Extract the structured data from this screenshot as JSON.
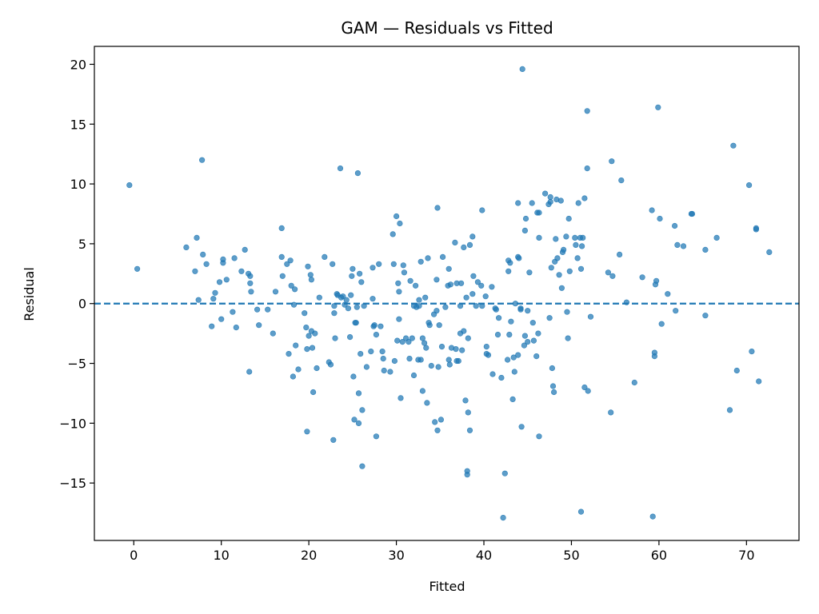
{
  "chart_data": {
    "type": "scatter",
    "title": "GAM — Residuals vs Fitted",
    "xlabel": "Fitted",
    "ylabel": "Residual",
    "xlim": [
      -4.5,
      76
    ],
    "ylim": [
      -19.8,
      21.5
    ],
    "xticks": [
      0,
      10,
      20,
      30,
      40,
      50,
      60,
      70
    ],
    "yticks": [
      -15,
      -10,
      -5,
      0,
      5,
      10,
      15,
      20
    ],
    "xtick_labels": [
      "0",
      "10",
      "20",
      "30",
      "40",
      "50",
      "60",
      "70"
    ],
    "ytick_labels": [
      "−15",
      "−10",
      "−5",
      "0",
      "5",
      "10",
      "15",
      "20"
    ],
    "grid": false,
    "reference_line": {
      "y": 0,
      "style": "dashed"
    },
    "colors": {
      "points": "#1f77b4",
      "reference_line": "#1f77b4"
    },
    "points": [
      [
        -0.5,
        9.9
      ],
      [
        0.4,
        2.9
      ],
      [
        6,
        4.7
      ],
      [
        7,
        2.7
      ],
      [
        7.2,
        5.5
      ],
      [
        7.4,
        0.3
      ],
      [
        7.8,
        12
      ],
      [
        7.9,
        4.1
      ],
      [
        8.3,
        3.3
      ],
      [
        8.9,
        -1.9
      ],
      [
        9.1,
        0.4
      ],
      [
        9.3,
        0.9
      ],
      [
        9.8,
        1.8
      ],
      [
        10,
        -1.3
      ],
      [
        10.2,
        3.7
      ],
      [
        10.2,
        3.4
      ],
      [
        10.6,
        2
      ],
      [
        11.3,
        -0.7
      ],
      [
        11.5,
        3.8
      ],
      [
        11.7,
        -2
      ],
      [
        12.3,
        2.7
      ],
      [
        12.7,
        4.5
      ],
      [
        13.1,
        2.5
      ],
      [
        13.2,
        -5.7
      ],
      [
        13.3,
        1.7
      ],
      [
        13.3,
        2.3
      ],
      [
        13.4,
        1
      ],
      [
        14.1,
        -0.5
      ],
      [
        14.3,
        -1.8
      ],
      [
        15.3,
        -0.5
      ],
      [
        15.9,
        -2.5
      ],
      [
        16.2,
        1
      ],
      [
        16.9,
        6.3
      ],
      [
        16.9,
        3.9
      ],
      [
        17,
        2.3
      ],
      [
        17.5,
        3.3
      ],
      [
        17.7,
        -4.2
      ],
      [
        17.9,
        3.6
      ],
      [
        18,
        1.5
      ],
      [
        18.2,
        -6.1
      ],
      [
        18.3,
        -0.1
      ],
      [
        18.4,
        1.2
      ],
      [
        18.5,
        -3.5
      ],
      [
        18.8,
        -5.5
      ],
      [
        19.5,
        -0.8
      ],
      [
        19.7,
        -2
      ],
      [
        19.8,
        -10.7
      ],
      [
        19.8,
        -3.8
      ],
      [
        19.9,
        3.1
      ],
      [
        20,
        -2.7
      ],
      [
        20.2,
        2.4
      ],
      [
        20.3,
        2
      ],
      [
        20.3,
        -2.3
      ],
      [
        20.4,
        -3.7
      ],
      [
        20.5,
        -7.4
      ],
      [
        20.7,
        -2.5
      ],
      [
        20.9,
        -5.4
      ],
      [
        21.2,
        0.5
      ],
      [
        21.8,
        3.9
      ],
      [
        22.3,
        -4.9
      ],
      [
        22.5,
        -5.1
      ],
      [
        22.7,
        3.3
      ],
      [
        22.8,
        -11.4
      ],
      [
        22.9,
        -0.2
      ],
      [
        22.9,
        -0.8
      ],
      [
        23,
        -2.9
      ],
      [
        23.2,
        0.8
      ],
      [
        23.3,
        0.7
      ],
      [
        23.6,
        11.3
      ],
      [
        23.7,
        0.5
      ],
      [
        23.9,
        0.6
      ],
      [
        24.1,
        -0.1
      ],
      [
        24.3,
        0.3
      ],
      [
        24.5,
        -0.4
      ],
      [
        24.7,
        -2.8
      ],
      [
        24.8,
        0.7
      ],
      [
        24.9,
        2.3
      ],
      [
        25,
        2.9
      ],
      [
        25.1,
        -6.1
      ],
      [
        25.2,
        -9.7
      ],
      [
        25.3,
        -1.6
      ],
      [
        25.4,
        -1.6
      ],
      [
        25.5,
        -0.3
      ],
      [
        25.6,
        10.9
      ],
      [
        25.7,
        -10
      ],
      [
        25.7,
        -7.5
      ],
      [
        25.8,
        2.5
      ],
      [
        25.9,
        -4.2
      ],
      [
        26,
        1.8
      ],
      [
        26.1,
        -8.9
      ],
      [
        26.1,
        -13.6
      ],
      [
        26.3,
        -0.2
      ],
      [
        26.6,
        -5.3
      ],
      [
        27.1,
        -4
      ],
      [
        27.3,
        0.4
      ],
      [
        27.3,
        3
      ],
      [
        27.4,
        -1.9
      ],
      [
        27.5,
        -1.8
      ],
      [
        27.7,
        -2.6
      ],
      [
        27.7,
        -11.1
      ],
      [
        28,
        3.3
      ],
      [
        28.2,
        -1.9
      ],
      [
        28.4,
        -4
      ],
      [
        28.5,
        -4.6
      ],
      [
        28.6,
        -5.6
      ],
      [
        29.3,
        -5.7
      ],
      [
        29.6,
        5.8
      ],
      [
        29.7,
        3.3
      ],
      [
        29.8,
        -4.8
      ],
      [
        30,
        7.3
      ],
      [
        30.1,
        -3.1
      ],
      [
        30.2,
        1.7
      ],
      [
        30.3,
        1
      ],
      [
        30.3,
        -1.3
      ],
      [
        30.4,
        6.7
      ],
      [
        30.5,
        -7.9
      ],
      [
        30.7,
        -3.2
      ],
      [
        30.8,
        3.2
      ],
      [
        30.9,
        2.6
      ],
      [
        31.1,
        -2.9
      ],
      [
        31.4,
        -3.2
      ],
      [
        31.5,
        -4.6
      ],
      [
        31.6,
        1.9
      ],
      [
        31.8,
        -2.9
      ],
      [
        32,
        -0.2
      ],
      [
        32,
        -6
      ],
      [
        32.2,
        1.5
      ],
      [
        32.3,
        -0.3
      ],
      [
        32.5,
        -4.7
      ],
      [
        32.6,
        0.3
      ],
      [
        32.6,
        -0.2
      ],
      [
        32.8,
        -4.7
      ],
      [
        32.8,
        3.5
      ],
      [
        33,
        -2.9
      ],
      [
        33,
        -7.3
      ],
      [
        33.2,
        -3.3
      ],
      [
        33.3,
        0.5
      ],
      [
        33.4,
        -3.7
      ],
      [
        33.5,
        -8.3
      ],
      [
        33.6,
        3.8
      ],
      [
        33.7,
        -1.6
      ],
      [
        33.8,
        -1.8
      ],
      [
        34,
        -5.2
      ],
      [
        34.3,
        -0.9
      ],
      [
        34.4,
        -9.9
      ],
      [
        34.6,
        -0.6
      ],
      [
        34.6,
        2
      ],
      [
        34.7,
        8
      ],
      [
        34.7,
        -10.6
      ],
      [
        34.8,
        -5.3
      ],
      [
        34.9,
        -1.8
      ],
      [
        35.1,
        -9.7
      ],
      [
        35.2,
        -3.6
      ],
      [
        35.3,
        3.9
      ],
      [
        35.6,
        -0.3
      ],
      [
        35.9,
        1.5
      ],
      [
        36,
        2.9
      ],
      [
        36,
        -4.7
      ],
      [
        36.1,
        -5.1
      ],
      [
        36.2,
        1.6
      ],
      [
        36.3,
        -3.7
      ],
      [
        36.7,
        5.1
      ],
      [
        36.8,
        -3.8
      ],
      [
        36.9,
        1.7
      ],
      [
        36.9,
        -4.8
      ],
      [
        37.1,
        -4.8
      ],
      [
        37.3,
        -2.5
      ],
      [
        37.3,
        -0.2
      ],
      [
        37.4,
        1.7
      ],
      [
        37.5,
        -3.9
      ],
      [
        37.7,
        -2.3
      ],
      [
        37.7,
        4.7
      ],
      [
        37.9,
        -8.1
      ],
      [
        38,
        0.5
      ],
      [
        38.1,
        -14
      ],
      [
        38.1,
        -14.3
      ],
      [
        38.2,
        -9.1
      ],
      [
        38.2,
        -2.9
      ],
      [
        38.4,
        4.9
      ],
      [
        38.4,
        -10.6
      ],
      [
        38.7,
        5.6
      ],
      [
        38.7,
        0.8
      ],
      [
        38.8,
        2.3
      ],
      [
        39.1,
        -0.2
      ],
      [
        39.3,
        1.8
      ],
      [
        39.7,
        1.5
      ],
      [
        39.8,
        7.8
      ],
      [
        39.8,
        -0.2
      ],
      [
        40.2,
        0.6
      ],
      [
        40.3,
        -4.2
      ],
      [
        40.3,
        -3.6
      ],
      [
        40.5,
        -4.3
      ],
      [
        40.9,
        1.4
      ],
      [
        41,
        -5.9
      ],
      [
        41.3,
        -0.4
      ],
      [
        41.4,
        -0.5
      ],
      [
        41.6,
        -2.6
      ],
      [
        41.7,
        -1.2
      ],
      [
        42,
        -6.2
      ],
      [
        42.2,
        -17.9
      ],
      [
        42.4,
        -14.2
      ],
      [
        42.7,
        -4.7
      ],
      [
        42.8,
        3.6
      ],
      [
        42.8,
        2.7
      ],
      [
        42.9,
        -2.6
      ],
      [
        43,
        3.4
      ],
      [
        43.1,
        -1.5
      ],
      [
        43.3,
        -8
      ],
      [
        43.4,
        -4.5
      ],
      [
        43.5,
        -5.7
      ],
      [
        43.6,
        0
      ],
      [
        43.9,
        -4.3
      ],
      [
        43.9,
        8.4
      ],
      [
        43.9,
        3.9
      ],
      [
        44,
        3.8
      ],
      [
        44.2,
        -0.5
      ],
      [
        44.2,
        -0.4
      ],
      [
        44.3,
        -10.3
      ],
      [
        44.4,
        19.6
      ],
      [
        44.6,
        -3.5
      ],
      [
        44.7,
        6.1
      ],
      [
        44.7,
        -2.7
      ],
      [
        44.8,
        7.1
      ],
      [
        45,
        -0.6
      ],
      [
        45,
        -3.2
      ],
      [
        45.2,
        2.6
      ],
      [
        45.5,
        8.4
      ],
      [
        45.6,
        -1.6
      ],
      [
        45.7,
        -3.1
      ],
      [
        46,
        -4.4
      ],
      [
        46.1,
        7.6
      ],
      [
        46.2,
        -2.5
      ],
      [
        46.3,
        7.6
      ],
      [
        46.3,
        -11.1
      ],
      [
        46.3,
        5.5
      ],
      [
        47,
        9.2
      ],
      [
        47.4,
        8.3
      ],
      [
        47.5,
        -1.2
      ],
      [
        47.6,
        8.5
      ],
      [
        47.6,
        8.9
      ],
      [
        47.7,
        3
      ],
      [
        47.8,
        -5.4
      ],
      [
        47.9,
        -6.9
      ],
      [
        48,
        -7.4
      ],
      [
        48.1,
        3.5
      ],
      [
        48.2,
        5.4
      ],
      [
        48.3,
        8.7
      ],
      [
        48.4,
        3.8
      ],
      [
        48.6,
        2.4
      ],
      [
        48.8,
        8.6
      ],
      [
        48.9,
        1.3
      ],
      [
        49,
        4.3
      ],
      [
        49.1,
        4.5
      ],
      [
        49.4,
        5.6
      ],
      [
        49.5,
        -0.7
      ],
      [
        49.6,
        -2.9
      ],
      [
        49.7,
        7.1
      ],
      [
        49.8,
        2.7
      ],
      [
        50.4,
        5.5
      ],
      [
        50.5,
        4.9
      ],
      [
        50.7,
        3.8
      ],
      [
        50.8,
        8.4
      ],
      [
        51,
        5.5
      ],
      [
        51.1,
        -17.4
      ],
      [
        51.1,
        2.9
      ],
      [
        51.2,
        4.8
      ],
      [
        51.3,
        5.5
      ],
      [
        51.5,
        8.8
      ],
      [
        51.5,
        -7
      ],
      [
        51.8,
        11.3
      ],
      [
        51.9,
        -7.3
      ],
      [
        51.8,
        16.1
      ],
      [
        52.2,
        -1.1
      ],
      [
        54.2,
        2.6
      ],
      [
        54.5,
        -9.1
      ],
      [
        54.7,
        2.3
      ],
      [
        54.6,
        11.9
      ],
      [
        55.5,
        4.1
      ],
      [
        55.7,
        10.3
      ],
      [
        56.3,
        0.1
      ],
      [
        57.2,
        -6.6
      ],
      [
        58.1,
        2.2
      ],
      [
        59.2,
        7.8
      ],
      [
        59.3,
        -17.8
      ],
      [
        59.5,
        -4.4
      ],
      [
        59.5,
        -4.1
      ],
      [
        59.6,
        1.6
      ],
      [
        59.7,
        1.9
      ],
      [
        59.9,
        16.4
      ],
      [
        60.1,
        7.1
      ],
      [
        60.3,
        -1.7
      ],
      [
        61,
        0.8
      ],
      [
        61.8,
        6.5
      ],
      [
        61.9,
        -0.6
      ],
      [
        62.1,
        4.9
      ],
      [
        62.8,
        4.8
      ],
      [
        63.7,
        7.5
      ],
      [
        63.8,
        7.5
      ],
      [
        65.3,
        4.5
      ],
      [
        65.3,
        -1
      ],
      [
        66.6,
        5.5
      ],
      [
        68.1,
        -8.9
      ],
      [
        68.5,
        13.2
      ],
      [
        68.9,
        -5.6
      ],
      [
        70.3,
        9.9
      ],
      [
        70.6,
        -4
      ],
      [
        71.1,
        6.3
      ],
      [
        71.1,
        6.2
      ],
      [
        71.4,
        -6.5
      ],
      [
        72.6,
        4.3
      ]
    ]
  }
}
